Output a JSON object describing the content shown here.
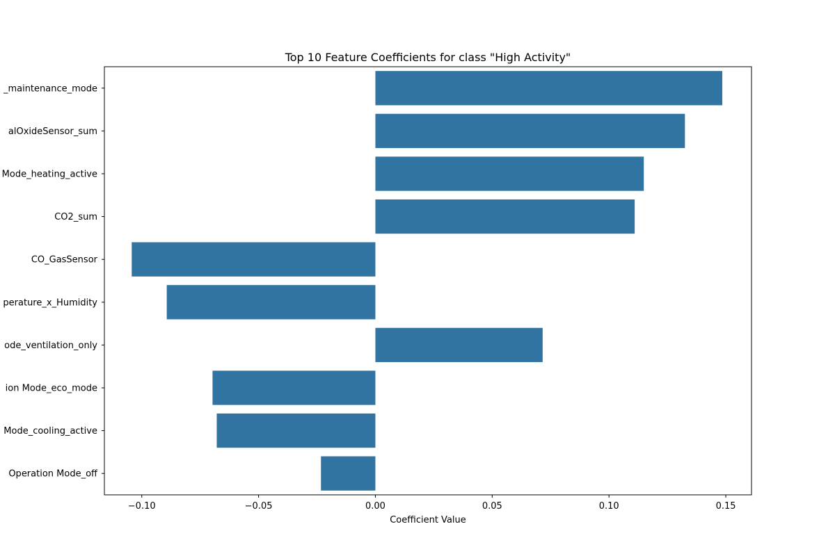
{
  "chart_data": {
    "type": "bar",
    "orientation": "horizontal",
    "title": "Top 10 Feature Coefficients for class \"High Activity\"",
    "xlabel": "Coefficient Value",
    "ylabel": "",
    "xlim": [
      -0.116,
      0.161
    ],
    "xticks": [
      -0.1,
      -0.05,
      0.0,
      0.05,
      0.1,
      0.15
    ],
    "xtick_labels": [
      "−0.10",
      "−0.05",
      "0.00",
      "0.05",
      "0.10",
      "0.15"
    ],
    "grid": false,
    "bar_color": "#3274a1",
    "categories": [
      "_maintenance_mode",
      "alOxideSensor_sum",
      "Mode_heating_active",
      "CO2_sum",
      "CO_GasSensor",
      "perature_x_Humidity",
      "ode_ventilation_only",
      "ion Mode_eco_mode",
      "Mode_cooling_active",
      "Operation Mode_off"
    ],
    "values": [
      0.1485,
      0.1325,
      0.1149,
      0.111,
      -0.1043,
      -0.0893,
      0.0716,
      -0.0697,
      -0.0679,
      -0.0233
    ]
  }
}
